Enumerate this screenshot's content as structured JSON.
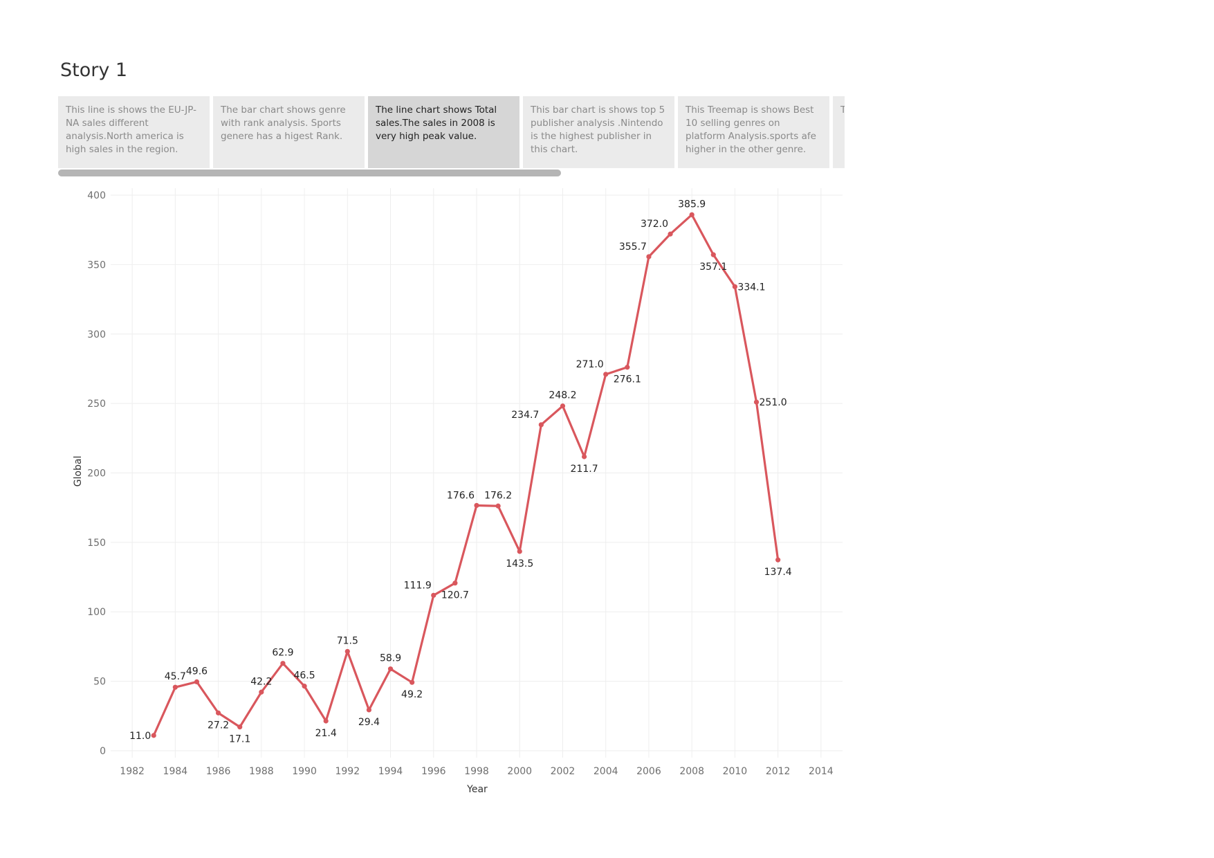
{
  "story": {
    "title": "Story 1",
    "points": [
      {
        "text": "This line is shows the EU-JP-NA sales different analysis.North america is high sales in  the region.",
        "active": false
      },
      {
        "text": "The bar chart shows genre with rank analysis. Sports genere has a higest Rank.",
        "active": false
      },
      {
        "text": "The line chart shows Total sales.The sales in 2008 is very high peak  value.",
        "active": true
      },
      {
        "text": "This bar chart is shows  top 5 publisher analysis .Nintendo is the highest publisher in this chart.",
        "active": false
      },
      {
        "text": "This Treemap is shows Best 10 selling genres on platform Analysis.sports afe higher in the other genre.",
        "active": false
      },
      {
        "text": "T hi s ..",
        "active": false
      }
    ]
  },
  "colors": {
    "line": "#d9575d",
    "grid": "#eeeeee",
    "active_point": "#d6d6d6",
    "inactive_point": "#ebebeb"
  },
  "chart_data": {
    "type": "line",
    "xlabel": "Year",
    "ylabel": "Global",
    "xlim": [
      1981,
      2015
    ],
    "ylim": [
      -5,
      405
    ],
    "xticks": [
      1982,
      1984,
      1986,
      1988,
      1990,
      1992,
      1994,
      1996,
      1998,
      2000,
      2002,
      2004,
      2006,
      2008,
      2010,
      2012,
      2014
    ],
    "yticks": [
      0,
      50,
      100,
      150,
      200,
      250,
      300,
      350,
      400
    ],
    "grid": true,
    "x": [
      1983,
      1984,
      1985,
      1986,
      1987,
      1988,
      1989,
      1990,
      1991,
      1992,
      1993,
      1994,
      1995,
      1996,
      1997,
      1998,
      1999,
      2000,
      2001,
      2002,
      2003,
      2004,
      2005,
      2006,
      2007,
      2008,
      2009,
      2010,
      2011,
      2012
    ],
    "values": [
      11.0,
      45.7,
      49.6,
      27.2,
      17.1,
      42.2,
      62.9,
      46.5,
      21.4,
      71.5,
      29.4,
      58.9,
      49.2,
      111.9,
      120.7,
      176.6,
      176.2,
      143.5,
      234.7,
      248.2,
      211.7,
      271.0,
      276.1,
      355.7,
      372.0,
      385.9,
      357.1,
      334.1,
      251.0,
      137.4
    ],
    "labels": [
      "11.0",
      "45.7",
      "49.6",
      "27.2",
      "17.1",
      "42.2",
      "62.9",
      "46.5",
      "21.4",
      "71.5",
      "29.4",
      "58.9",
      "49.2",
      "111.9",
      "120.7",
      "176.6",
      "176.2",
      "143.5",
      "234.7",
      "248.2",
      "211.7",
      "271.0",
      "276.1",
      "355.7",
      "372.0",
      "385.9",
      "357.1",
      "334.1",
      "251.0",
      "137.4"
    ],
    "label_pos": [
      "left",
      "above",
      "above",
      "below",
      "below",
      "above",
      "above",
      "above",
      "below",
      "above",
      "below",
      "above",
      "below",
      "above-left",
      "below",
      "above-left",
      "above",
      "below",
      "above-left",
      "above",
      "below",
      "above-left",
      "below",
      "above-left",
      "above-left",
      "above",
      "below",
      "right",
      "right",
      "below"
    ]
  }
}
